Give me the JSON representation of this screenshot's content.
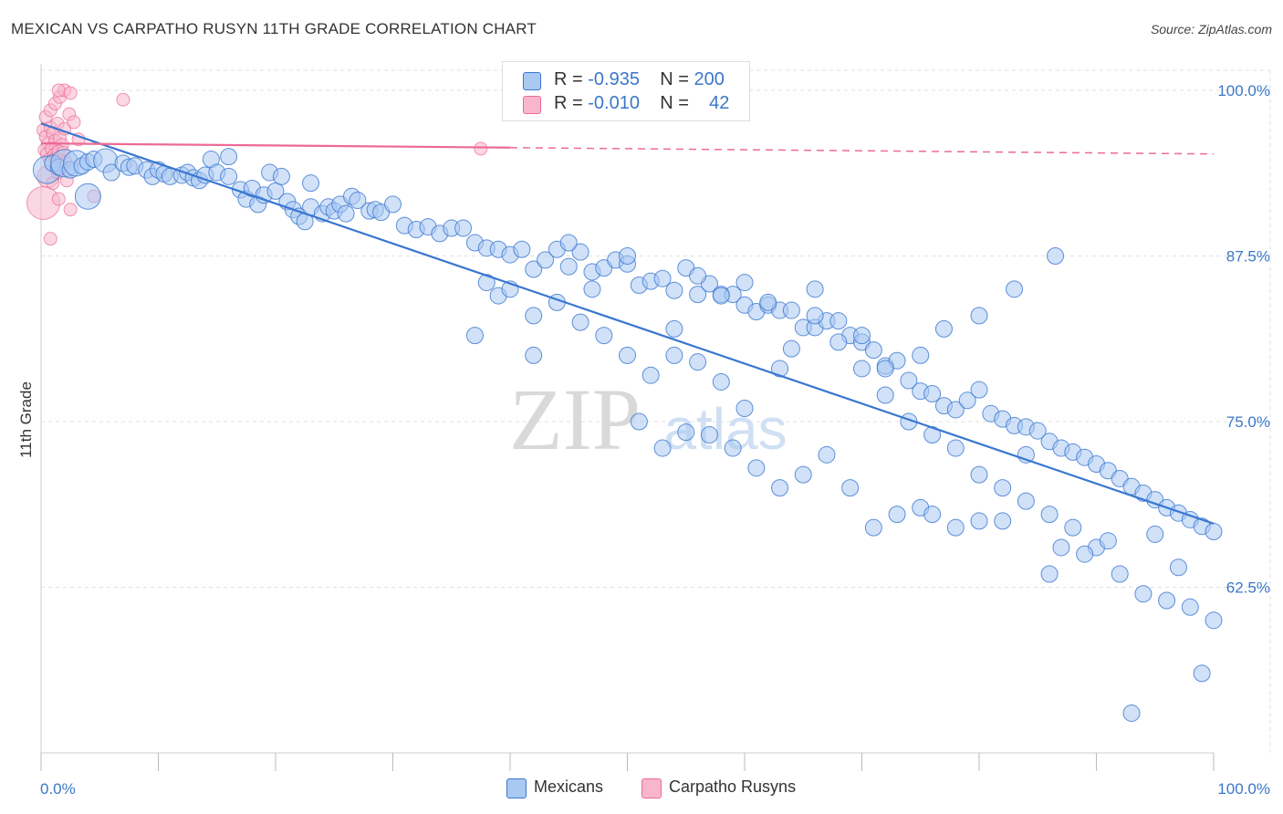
{
  "title": "MEXICAN VS CARPATHO RUSYN 11TH GRADE CORRELATION CHART",
  "source": "Source: ZipAtlas.com",
  "watermark": {
    "zip": "ZIP",
    "atlas": "atlas"
  },
  "colors": {
    "blue": "#3a77d0",
    "blue_fill": "#a9c9f2",
    "pink": "#ec6b96",
    "pink_fill": "#f7b6cc",
    "axis_label": "#3a77c8"
  },
  "legend": {
    "rows": [
      {
        "r_label": "R = ",
        "r_value": "-0.935",
        "n_label": "N = ",
        "n_value": "200"
      },
      {
        "r_label": "R = ",
        "r_value": "-0.010",
        "n_label": "N = ",
        "n_value": "42"
      }
    ],
    "series": [
      "Mexicans",
      "Carpatho Rusyns"
    ]
  },
  "chart_data": {
    "type": "scatter",
    "title": "MEXICAN VS CARPATHO RUSYN 11TH GRADE CORRELATION CHART",
    "xlabel": "",
    "ylabel": "11th Grade",
    "xlim": [
      0,
      100
    ],
    "ylim": [
      50,
      102
    ],
    "x_tick_labels": [
      "0.0%",
      "100.0%"
    ],
    "y_ticks": [
      62.5,
      75.0,
      87.5,
      100.0
    ],
    "y_tick_labels": [
      "62.5%",
      "75.0%",
      "87.5%",
      "100.0%"
    ],
    "grid": true,
    "legend_position": "top-center",
    "series": [
      {
        "name": "Mexicans",
        "r": -0.935,
        "n": 200,
        "trend": {
          "x": [
            0,
            100
          ],
          "y": [
            97.5,
            67.3
          ]
        },
        "points": [
          [
            0.5,
            94
          ],
          [
            1,
            94.5
          ],
          [
            1.5,
            94.2
          ],
          [
            2,
            94.5
          ],
          [
            2.5,
            94
          ],
          [
            3,
            94.5
          ],
          [
            3.5,
            94.3
          ],
          [
            4,
            94.6
          ],
          [
            4.5,
            94.8
          ],
          [
            5.5,
            94.7
          ],
          [
            6,
            93.8
          ],
          [
            7,
            94.5
          ],
          [
            7.5,
            94.2
          ],
          [
            8,
            94.3
          ],
          [
            9,
            94
          ],
          [
            9.5,
            93.5
          ],
          [
            10,
            94
          ],
          [
            10.5,
            93.7
          ],
          [
            11,
            93.5
          ],
          [
            12,
            93.6
          ],
          [
            12.5,
            93.8
          ],
          [
            13,
            93.4
          ],
          [
            13.5,
            93.2
          ],
          [
            14,
            93.6
          ],
          [
            14.5,
            94.8
          ],
          [
            15,
            93.8
          ],
          [
            16,
            93.5
          ],
          [
            17,
            92.5
          ],
          [
            17.5,
            91.8
          ],
          [
            18,
            92.6
          ],
          [
            18.5,
            91.4
          ],
          [
            19,
            92.1
          ],
          [
            19.5,
            93.8
          ],
          [
            20,
            92.4
          ],
          [
            21,
            91.6
          ],
          [
            21.5,
            91
          ],
          [
            22,
            90.5
          ],
          [
            22.5,
            90.1
          ],
          [
            23,
            91.2
          ],
          [
            24,
            90.7
          ],
          [
            24.5,
            91.2
          ],
          [
            25,
            90.9
          ],
          [
            25.5,
            91.4
          ],
          [
            26,
            90.7
          ],
          [
            26.5,
            92
          ],
          [
            27,
            91.7
          ],
          [
            28,
            90.9
          ],
          [
            28.5,
            91
          ],
          [
            29,
            90.8
          ],
          [
            30,
            91.4
          ],
          [
            31,
            89.8
          ],
          [
            32,
            89.5
          ],
          [
            33,
            89.7
          ],
          [
            34,
            89.2
          ],
          [
            35,
            89.6
          ],
          [
            36,
            89.6
          ],
          [
            37,
            88.5
          ],
          [
            38,
            88.1
          ],
          [
            39,
            88
          ],
          [
            40,
            87.6
          ],
          [
            41,
            88
          ],
          [
            42,
            86.5
          ],
          [
            43,
            87.2
          ],
          [
            44,
            88
          ],
          [
            45,
            86.7
          ],
          [
            46,
            87.8
          ],
          [
            47,
            86.3
          ],
          [
            48,
            86.6
          ],
          [
            49,
            87.2
          ],
          [
            50,
            86.9
          ],
          [
            51,
            85.3
          ],
          [
            52,
            85.6
          ],
          [
            53,
            85.8
          ],
          [
            54,
            84.9
          ],
          [
            55,
            86.6
          ],
          [
            56,
            84.6
          ],
          [
            57,
            85.4
          ],
          [
            58,
            84.6
          ],
          [
            59,
            84.6
          ],
          [
            60,
            83.8
          ],
          [
            61,
            83.3
          ],
          [
            62,
            83.8
          ],
          [
            63,
            83.4
          ],
          [
            64,
            83.4
          ],
          [
            65,
            82.1
          ],
          [
            66,
            82.1
          ],
          [
            67,
            82.6
          ],
          [
            68,
            82.6
          ],
          [
            69,
            81.5
          ],
          [
            70,
            81
          ],
          [
            71,
            80.4
          ],
          [
            72,
            79.2
          ],
          [
            73,
            79.6
          ],
          [
            74,
            78.1
          ],
          [
            75,
            77.3
          ],
          [
            76,
            77.1
          ],
          [
            77,
            76.2
          ],
          [
            78,
            75.9
          ],
          [
            79,
            76.6
          ],
          [
            80,
            77.4
          ],
          [
            81,
            75.6
          ],
          [
            82,
            75.2
          ],
          [
            83,
            74.7
          ],
          [
            84,
            74.6
          ],
          [
            85,
            74.3
          ],
          [
            86,
            73.5
          ],
          [
            87,
            73
          ],
          [
            88,
            72.7
          ],
          [
            89,
            72.3
          ],
          [
            90,
            71.8
          ],
          [
            91,
            71.3
          ],
          [
            92,
            70.7
          ],
          [
            93,
            70.1
          ],
          [
            94,
            69.6
          ],
          [
            95,
            69.1
          ],
          [
            96,
            68.5
          ],
          [
            97,
            68.1
          ],
          [
            98,
            67.6
          ],
          [
            99,
            67.1
          ],
          [
            100,
            66.7
          ],
          [
            20.5,
            93.5
          ],
          [
            23,
            93
          ],
          [
            16,
            95
          ],
          [
            38,
            85.5
          ],
          [
            39,
            84.5
          ],
          [
            45,
            88.5
          ],
          [
            47,
            85
          ],
          [
            50,
            87.5
          ],
          [
            54,
            82
          ],
          [
            56,
            86
          ],
          [
            58,
            84.5
          ],
          [
            60,
            85.5
          ],
          [
            62,
            84
          ],
          [
            64,
            80.5
          ],
          [
            66,
            83
          ],
          [
            68,
            81
          ],
          [
            70,
            79
          ],
          [
            72,
            77
          ],
          [
            74,
            75
          ],
          [
            76,
            74
          ],
          [
            78,
            73
          ],
          [
            80,
            71
          ],
          [
            82,
            70
          ],
          [
            84,
            69
          ],
          [
            86,
            68
          ],
          [
            88,
            67
          ],
          [
            90,
            65.5
          ],
          [
            92,
            63.5
          ],
          [
            94,
            62
          ],
          [
            96,
            61.5
          ],
          [
            98,
            61
          ],
          [
            100,
            60
          ],
          [
            99,
            56
          ],
          [
            93,
            53
          ],
          [
            86,
            63.5
          ],
          [
            87,
            65.5
          ],
          [
            89,
            65
          ],
          [
            91,
            66
          ],
          [
            95,
            66.5
          ],
          [
            97,
            64
          ],
          [
            86.5,
            87.5
          ],
          [
            83,
            85
          ],
          [
            80,
            83
          ],
          [
            77,
            82
          ],
          [
            75,
            80
          ],
          [
            72,
            79
          ],
          [
            70,
            81.5
          ],
          [
            66,
            85
          ],
          [
            63,
            79
          ],
          [
            60,
            76
          ],
          [
            58,
            78
          ],
          [
            56,
            79.5
          ],
          [
            54,
            80
          ],
          [
            52,
            78.5
          ],
          [
            50,
            80
          ],
          [
            48,
            81.5
          ],
          [
            46,
            82.5
          ],
          [
            44,
            84
          ],
          [
            42,
            83
          ],
          [
            40,
            85
          ],
          [
            37,
            81.5
          ],
          [
            42,
            80
          ],
          [
            51,
            75
          ],
          [
            53,
            73
          ],
          [
            55,
            74.2
          ],
          [
            57,
            74
          ],
          [
            59,
            73
          ],
          [
            61,
            71.5
          ],
          [
            63,
            70
          ],
          [
            65,
            71
          ],
          [
            67,
            72.5
          ],
          [
            69,
            70
          ],
          [
            71,
            67
          ],
          [
            73,
            68
          ],
          [
            75,
            68.5
          ],
          [
            76,
            68
          ],
          [
            78,
            67
          ],
          [
            80,
            67.5
          ],
          [
            82,
            67.5
          ],
          [
            84,
            72.5
          ]
        ]
      },
      {
        "name": "Carpatho Rusyns",
        "r": -0.01,
        "n": 42,
        "trend": {
          "x": [
            0,
            100
          ],
          "y": [
            96.0,
            95.2
          ]
        },
        "points": [
          [
            0.2,
            97
          ],
          [
            0.4,
            96.5
          ],
          [
            0.6,
            96
          ],
          [
            0.8,
            97.2
          ],
          [
            1,
            96.8
          ],
          [
            1.2,
            96.2
          ],
          [
            1.4,
            97.5
          ],
          [
            1.6,
            96.4
          ],
          [
            1.8,
            95.9
          ],
          [
            2,
            97.1
          ],
          [
            0.3,
            95.5
          ],
          [
            0.5,
            95.2
          ],
          [
            0.7,
            94.8
          ],
          [
            0.9,
            95.6
          ],
          [
            1.1,
            95.1
          ],
          [
            1.3,
            94.9
          ],
          [
            1.5,
            95.4
          ],
          [
            1.7,
            94.7
          ],
          [
            1.9,
            95.3
          ],
          [
            2.1,
            94.6
          ],
          [
            0.4,
            98
          ],
          [
            0.8,
            98.5
          ],
          [
            1.2,
            99
          ],
          [
            1.6,
            99.5
          ],
          [
            2,
            100
          ],
          [
            2.4,
            98.2
          ],
          [
            2.8,
            97.6
          ],
          [
            3.2,
            96.3
          ],
          [
            0.6,
            93.5
          ],
          [
            1,
            93
          ],
          [
            1.4,
            93.8
          ],
          [
            1.8,
            94.2
          ],
          [
            2.2,
            93.2
          ],
          [
            0.2,
            91.5
          ],
          [
            1.5,
            91.8
          ],
          [
            2.5,
            91
          ],
          [
            0.8,
            88.8
          ],
          [
            4.5,
            92
          ],
          [
            7,
            99.3
          ],
          [
            37.5,
            95.6
          ],
          [
            1.5,
            100
          ],
          [
            2.5,
            99.8
          ]
        ]
      }
    ]
  }
}
